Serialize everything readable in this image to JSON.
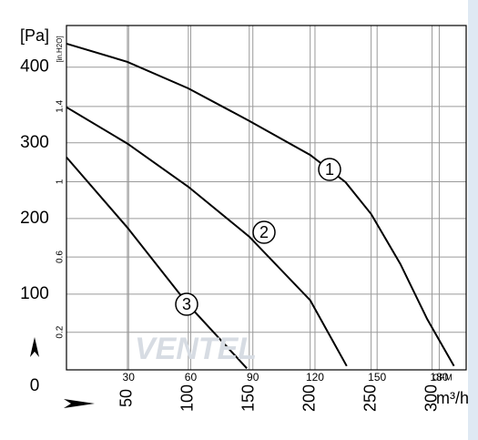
{
  "chart_data": {
    "type": "line",
    "y_label": "[Pa]",
    "y2_label": "[in.H2O]",
    "x_label": "m³/h",
    "x2_label": "CFM",
    "watermark": "VENTEL",
    "xlim": [
      0,
      328
    ],
    "xticks": [
      50,
      100,
      150,
      200,
      250,
      300
    ],
    "x2lim": [
      0,
      193
    ],
    "x2ticks": [
      30,
      60,
      90,
      120,
      150,
      180
    ],
    "ylim": [
      0,
      455
    ],
    "yticks": [
      0,
      100,
      200,
      300,
      400
    ],
    "y2lim": [
      0,
      1.83
    ],
    "y2ticks": [
      0.2,
      0.6,
      1.0,
      1.4
    ],
    "grid": true,
    "series": [
      {
        "name": "1",
        "color": "#000000",
        "x": [
          0,
          50,
          100,
          150,
          200,
          229,
          250,
          274,
          296,
          318
        ],
        "values": [
          431,
          407,
          372,
          329,
          284,
          248,
          206,
          140,
          67,
          5
        ]
      },
      {
        "name": "2",
        "color": "#000000",
        "x": [
          0,
          50,
          100,
          150,
          200,
          230
        ],
        "values": [
          347,
          299,
          242,
          176,
          92,
          5
        ]
      },
      {
        "name": "3",
        "color": "#000000",
        "x": [
          0,
          50,
          100,
          148
        ],
        "values": [
          281,
          188,
          86,
          2
        ]
      }
    ]
  }
}
